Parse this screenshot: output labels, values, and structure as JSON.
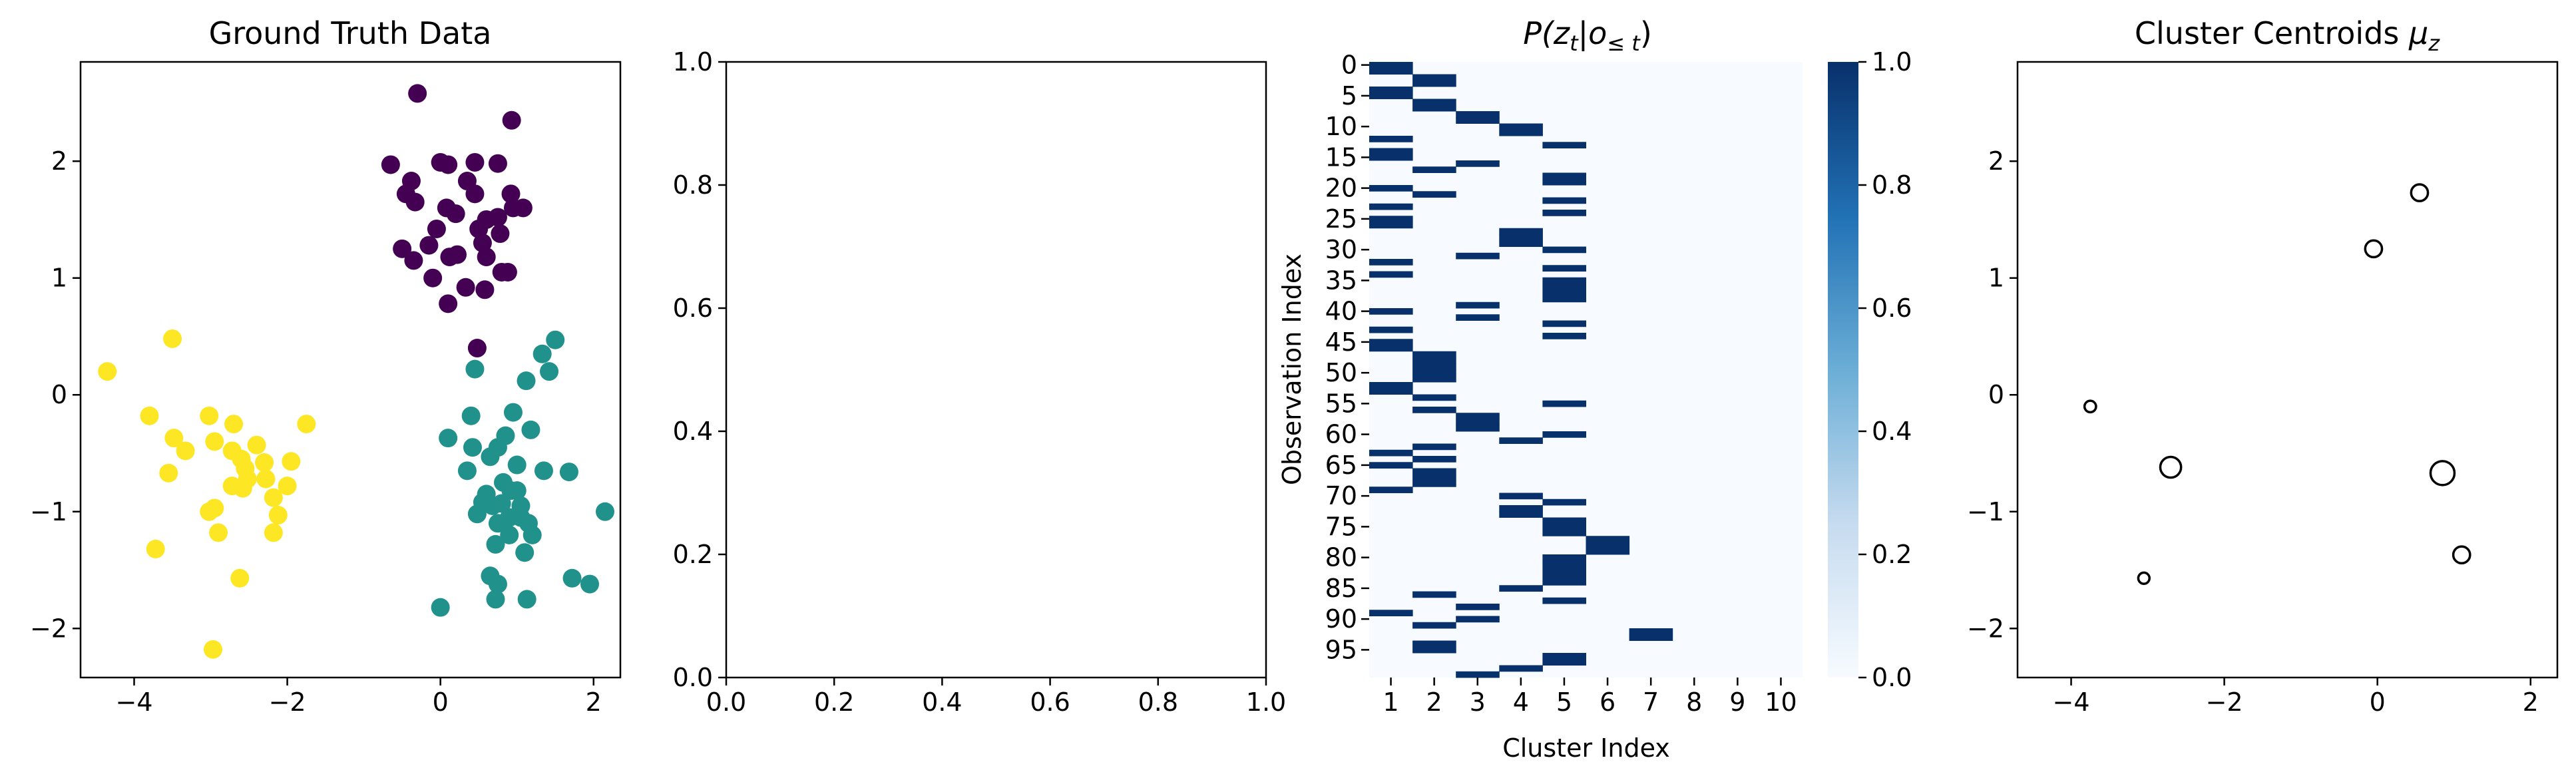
{
  "chart_data": [
    {
      "type": "scatter",
      "title": "Ground Truth Data",
      "xlim": [
        -4.7,
        2.35
      ],
      "ylim": [
        -2.42,
        2.85
      ],
      "xticks": [
        -4,
        -2,
        0,
        2
      ],
      "yticks": [
        -2,
        -1,
        0,
        1,
        2
      ],
      "xtick_labels": [
        "−4",
        "−2",
        "0",
        "2"
      ],
      "ytick_labels": [
        "−2",
        "−1",
        "0",
        "1",
        "2"
      ],
      "series": [
        {
          "color": "#440154",
          "points": [
            [
              -0.3,
              2.58
            ],
            [
              0.93,
              2.35
            ],
            [
              -0.65,
              1.97
            ],
            [
              0.0,
              1.99
            ],
            [
              0.1,
              1.97
            ],
            [
              0.45,
              1.99
            ],
            [
              0.75,
              1.98
            ],
            [
              -0.38,
              1.83
            ],
            [
              0.35,
              1.83
            ],
            [
              0.45,
              1.72
            ],
            [
              -0.45,
              1.72
            ],
            [
              -0.33,
              1.65
            ],
            [
              0.08,
              1.6
            ],
            [
              0.2,
              1.55
            ],
            [
              0.92,
              1.72
            ],
            [
              0.95,
              1.6
            ],
            [
              1.08,
              1.6
            ],
            [
              0.75,
              1.52
            ],
            [
              0.6,
              1.5
            ],
            [
              0.5,
              1.42
            ],
            [
              -0.05,
              1.42
            ],
            [
              -0.15,
              1.28
            ],
            [
              0.78,
              1.38
            ],
            [
              0.55,
              1.3
            ],
            [
              0.6,
              1.18
            ],
            [
              0.12,
              1.18
            ],
            [
              0.22,
              1.2
            ],
            [
              -0.5,
              1.25
            ],
            [
              -0.35,
              1.15
            ],
            [
              0.8,
              1.05
            ],
            [
              0.88,
              1.05
            ],
            [
              -0.1,
              1.0
            ],
            [
              0.58,
              0.9
            ],
            [
              0.33,
              0.92
            ],
            [
              0.1,
              0.78
            ],
            [
              0.48,
              0.4
            ]
          ]
        },
        {
          "color": "#21918c",
          "points": [
            [
              1.33,
              0.35
            ],
            [
              1.5,
              0.47
            ],
            [
              1.42,
              0.2
            ],
            [
              1.12,
              0.12
            ],
            [
              0.45,
              0.22
            ],
            [
              0.95,
              -0.15
            ],
            [
              0.4,
              -0.18
            ],
            [
              0.85,
              -0.35
            ],
            [
              1.18,
              -0.3
            ],
            [
              0.1,
              -0.37
            ],
            [
              0.42,
              -0.45
            ],
            [
              0.75,
              -0.45
            ],
            [
              0.65,
              -0.53
            ],
            [
              1.0,
              -0.6
            ],
            [
              0.35,
              -0.65
            ],
            [
              1.35,
              -0.65
            ],
            [
              1.68,
              -0.66
            ],
            [
              0.82,
              -0.75
            ],
            [
              0.92,
              -0.82
            ],
            [
              0.6,
              -0.85
            ],
            [
              1.0,
              -0.82
            ],
            [
              0.55,
              -0.92
            ],
            [
              0.68,
              -0.95
            ],
            [
              0.8,
              -0.93
            ],
            [
              1.05,
              -0.95
            ],
            [
              2.15,
              -1.0
            ],
            [
              0.48,
              -1.02
            ],
            [
              0.9,
              -1.05
            ],
            [
              1.05,
              -1.05
            ],
            [
              0.75,
              -1.1
            ],
            [
              1.15,
              -1.1
            ],
            [
              0.9,
              -1.2
            ],
            [
              1.2,
              -1.2
            ],
            [
              0.72,
              -1.28
            ],
            [
              1.1,
              -1.35
            ],
            [
              0.0,
              -1.82
            ],
            [
              0.65,
              -1.55
            ],
            [
              0.75,
              -1.62
            ],
            [
              0.72,
              -1.75
            ],
            [
              1.13,
              -1.75
            ],
            [
              1.72,
              -1.57
            ],
            [
              1.95,
              -1.62
            ]
          ]
        },
        {
          "color": "#fde725",
          "points": [
            [
              -3.5,
              0.48
            ],
            [
              -4.35,
              0.2
            ],
            [
              -3.8,
              -0.18
            ],
            [
              -3.02,
              -0.18
            ],
            [
              -2.7,
              -0.25
            ],
            [
              -1.75,
              -0.25
            ],
            [
              -3.48,
              -0.37
            ],
            [
              -2.95,
              -0.4
            ],
            [
              -2.4,
              -0.43
            ],
            [
              -3.33,
              -0.48
            ],
            [
              -2.72,
              -0.48
            ],
            [
              -2.6,
              -0.55
            ],
            [
              -2.3,
              -0.58
            ],
            [
              -1.95,
              -0.57
            ],
            [
              -2.55,
              -0.63
            ],
            [
              -3.55,
              -0.67
            ],
            [
              -2.52,
              -0.72
            ],
            [
              -2.28,
              -0.72
            ],
            [
              -2.72,
              -0.78
            ],
            [
              -2.58,
              -0.8
            ],
            [
              -2.0,
              -0.78
            ],
            [
              -2.18,
              -0.88
            ],
            [
              -2.95,
              -0.97
            ],
            [
              -3.02,
              -1.0
            ],
            [
              -2.12,
              -1.03
            ],
            [
              -2.9,
              -1.18
            ],
            [
              -2.18,
              -1.18
            ],
            [
              -3.72,
              -1.32
            ],
            [
              -2.62,
              -1.57
            ],
            [
              -2.97,
              -2.18
            ]
          ]
        }
      ]
    },
    {
      "type": "scatter",
      "xlim": [
        0,
        1
      ],
      "ylim": [
        0,
        1
      ],
      "xticks": [
        0,
        0.2,
        0.4,
        0.6,
        0.8,
        1
      ],
      "yticks": [
        0,
        0.2,
        0.4,
        0.6,
        0.8,
        1
      ],
      "xtick_labels": [
        "0.0",
        "0.2",
        "0.4",
        "0.6",
        "0.8",
        "1.0"
      ],
      "ytick_labels": [
        "0.0",
        "0.2",
        "0.4",
        "0.6",
        "0.8",
        "1.0"
      ]
    },
    {
      "type": "heatmap",
      "title": "P(z_t | o_≤t)",
      "title_parts": {
        "p": "P(",
        "z": "z",
        "zsub": "t",
        "bar": "|",
        "o": "o",
        "osub": "≤ t",
        "close": ")"
      },
      "xlabel": "Cluster Index",
      "ylabel": "Observation Index",
      "n_rows": 100,
      "n_cols": 10,
      "col_labels": [
        "1",
        "2",
        "3",
        "4",
        "5",
        "6",
        "7",
        "8",
        "9",
        "10"
      ],
      "row_ticks": [
        0,
        5,
        10,
        15,
        20,
        25,
        30,
        35,
        40,
        45,
        50,
        55,
        60,
        65,
        70,
        75,
        80,
        85,
        90,
        95
      ],
      "row_tick_labels": [
        "0",
        "5",
        "10",
        "15",
        "20",
        "25",
        "30",
        "35",
        "40",
        "45",
        "50",
        "55",
        "60",
        "65",
        "70",
        "75",
        "80",
        "85",
        "90",
        "95"
      ],
      "colormap": [
        "#f7fbff",
        "#08306b"
      ],
      "colorbar_range": [
        0.0,
        1.0
      ],
      "colorbar_ticks": [
        "0.0",
        "0.2",
        "0.4",
        "0.6",
        "0.8",
        "1.0"
      ],
      "assignments": [
        1,
        1,
        2,
        2,
        1,
        1,
        2,
        2,
        3,
        3,
        4,
        4,
        1,
        5,
        1,
        1,
        3,
        2,
        5,
        5,
        1,
        2,
        5,
        1,
        5,
        1,
        1,
        4,
        4,
        4,
        5,
        3,
        1,
        5,
        1,
        5,
        5,
        5,
        5,
        3,
        1,
        3,
        5,
        1,
        5,
        1,
        1,
        2,
        2,
        2,
        2,
        2,
        1,
        1,
        2,
        5,
        2,
        3,
        3,
        3,
        5,
        4,
        2,
        1,
        2,
        1,
        2,
        2,
        2,
        1,
        4,
        5,
        4,
        4,
        5,
        5,
        5,
        6,
        6,
        6,
        5,
        5,
        5,
        5,
        5,
        4,
        2,
        5,
        3,
        1,
        3,
        2,
        7,
        7,
        2,
        2,
        5,
        5,
        4,
        3
      ]
    },
    {
      "type": "scatter",
      "title": "Cluster Centroids μ_z",
      "title_parts": {
        "text": "Cluster Centroids ",
        "mu": "μ",
        "sub": "z"
      },
      "xlim": [
        -4.7,
        2.35
      ],
      "ylim": [
        -2.42,
        2.85
      ],
      "xticks": [
        -4,
        -2,
        0,
        2
      ],
      "yticks": [
        -2,
        -1,
        0,
        1,
        2
      ],
      "xtick_labels": [
        "−4",
        "−2",
        "0",
        "2"
      ],
      "ytick_labels": [
        "−2",
        "−1",
        "0",
        "1",
        "2"
      ],
      "centroids": [
        {
          "x": 0.55,
          "y": 1.73,
          "weight": 0.55
        },
        {
          "x": -0.05,
          "y": 1.25,
          "weight": 0.55
        },
        {
          "x": -3.75,
          "y": -0.1,
          "weight": 0.22
        },
        {
          "x": -2.7,
          "y": -0.62,
          "weight": 0.8
        },
        {
          "x": 0.85,
          "y": -0.67,
          "weight": 1.0
        },
        {
          "x": 1.1,
          "y": -1.37,
          "weight": 0.55
        },
        {
          "x": -3.05,
          "y": -1.57,
          "weight": 0.2
        }
      ]
    }
  ]
}
